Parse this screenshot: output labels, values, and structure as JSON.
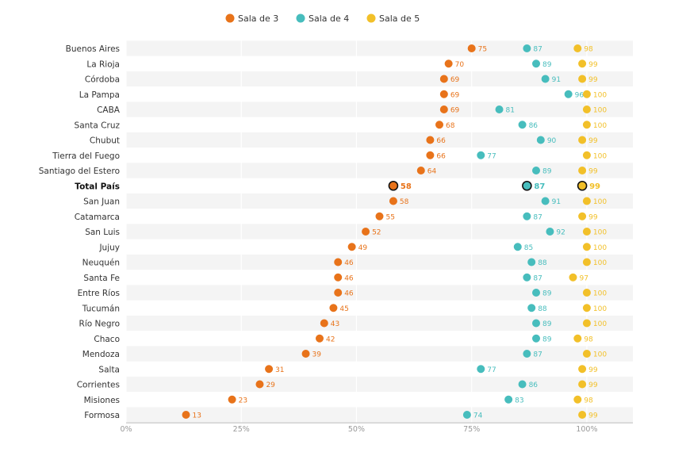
{
  "chart_data": {
    "type": "scatter",
    "title": "",
    "xlabel": "",
    "ylabel": "",
    "xlim": [
      0,
      110
    ],
    "x_ticks": [
      0,
      25,
      50,
      75,
      100
    ],
    "x_tick_labels": [
      "0%",
      "25%",
      "50%",
      "75%",
      "100%"
    ],
    "legend_position": "top",
    "grid": true,
    "highlight_category": "Total País",
    "categories": [
      "Buenos Aires",
      "La Rioja",
      "Córdoba",
      "La Pampa",
      "CABA",
      "Santa Cruz",
      "Chubut",
      "Tierra del Fuego",
      "Santiago del Estero",
      "Total País",
      "San Juan",
      "Catamarca",
      "San Luis",
      "Jujuy",
      "Neuquén",
      "Santa Fe",
      "Entre Ríos",
      "Tucumán",
      "Río Negro",
      "Chaco",
      "Mendoza",
      "Salta",
      "Corrientes",
      "Misiones",
      "Formosa"
    ],
    "series": [
      {
        "name": "Sala de 3",
        "color": "#e8731a",
        "values": [
          75,
          70,
          69,
          69,
          69,
          68,
          66,
          66,
          64,
          58,
          58,
          55,
          52,
          49,
          46,
          46,
          46,
          45,
          43,
          42,
          39,
          31,
          29,
          23,
          13
        ]
      },
      {
        "name": "Sala de 4",
        "color": "#47bdbd",
        "values": [
          87,
          89,
          91,
          96,
          81,
          86,
          90,
          77,
          89,
          87,
          91,
          87,
          92,
          85,
          88,
          87,
          89,
          88,
          89,
          89,
          87,
          77,
          86,
          83,
          74
        ]
      },
      {
        "name": "Sala de 5",
        "color": "#f2c029",
        "values": [
          98,
          99,
          99,
          100,
          100,
          100,
          99,
          100,
          99,
          99,
          100,
          99,
          100,
          100,
          100,
          97,
          100,
          100,
          100,
          98,
          100,
          99,
          99,
          98,
          99
        ]
      }
    ]
  }
}
